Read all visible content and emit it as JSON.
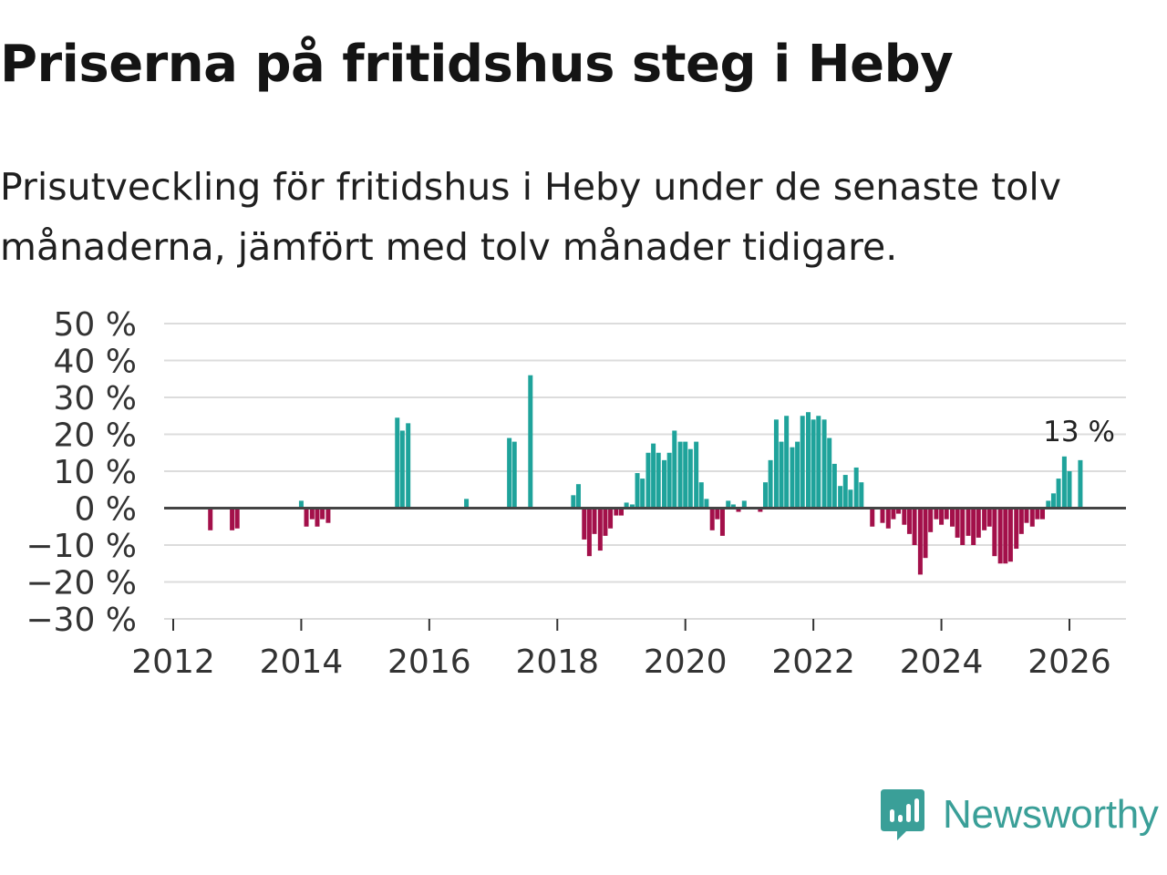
{
  "title": "Priserna på fritidshus steg i Heby",
  "subtitle": "Prisutveckling för fritidshus i Heby under de senaste tolv månaderna, jämfört med tolv månader tidigare.",
  "brand": {
    "name": "Newsworthy",
    "icon": "bar-chart-bubble-icon"
  },
  "colors": {
    "positive": "#1fa39b",
    "negative": "#a3104a",
    "grid": "#dcdcdc",
    "zero": "#444444",
    "brand": "#3a9f98"
  },
  "chart_data": {
    "type": "bar",
    "title": "Priserna på fritidshus steg i Heby",
    "xlabel": "",
    "ylabel": "",
    "ylim": [
      -30,
      50
    ],
    "yticks": [
      50,
      40,
      30,
      20,
      10,
      0,
      -10,
      -20,
      -30
    ],
    "ytick_labels": [
      "50 %",
      "40 %",
      "30 %",
      "20 %",
      "10 %",
      "0 %",
      "−10 %",
      "−20 %",
      "−30 %"
    ],
    "xlim": [
      2012,
      2026.85
    ],
    "xticks": [
      2012,
      2014,
      2016,
      2018,
      2020,
      2022,
      2024,
      2026
    ],
    "xtick_labels": [
      "2012",
      "2014",
      "2016",
      "2018",
      "2020",
      "2022",
      "2024",
      "2026"
    ],
    "grid": true,
    "annotation": {
      "text": "13 %",
      "x": 2026.17,
      "y": 13
    },
    "series": [
      {
        "name": "Prisutveckling",
        "points": [
          [
            2012.58,
            -6
          ],
          [
            2012.92,
            -6
          ],
          [
            2013.0,
            -5.5
          ],
          [
            2014.0,
            2
          ],
          [
            2014.08,
            -5
          ],
          [
            2014.17,
            -3
          ],
          [
            2014.25,
            -5
          ],
          [
            2014.33,
            -3
          ],
          [
            2014.42,
            -4
          ],
          [
            2015.5,
            24.5
          ],
          [
            2015.58,
            21
          ],
          [
            2015.67,
            23
          ],
          [
            2016.58,
            2.5
          ],
          [
            2017.25,
            19
          ],
          [
            2017.33,
            18
          ],
          [
            2017.58,
            36
          ],
          [
            2018.25,
            3.5
          ],
          [
            2018.33,
            6.5
          ],
          [
            2018.42,
            -8.5
          ],
          [
            2018.5,
            -13
          ],
          [
            2018.58,
            -7
          ],
          [
            2018.67,
            -11.5
          ],
          [
            2018.75,
            -7.5
          ],
          [
            2018.83,
            -5.5
          ],
          [
            2018.92,
            -2
          ],
          [
            2019.0,
            -2
          ],
          [
            2019.08,
            1.5
          ],
          [
            2019.17,
            1
          ],
          [
            2019.25,
            9.5
          ],
          [
            2019.33,
            8
          ],
          [
            2019.42,
            15
          ],
          [
            2019.5,
            17.5
          ],
          [
            2019.58,
            15
          ],
          [
            2019.67,
            13
          ],
          [
            2019.75,
            15
          ],
          [
            2019.83,
            21
          ],
          [
            2019.92,
            18
          ],
          [
            2020.0,
            18
          ],
          [
            2020.08,
            16
          ],
          [
            2020.17,
            18
          ],
          [
            2020.25,
            7
          ],
          [
            2020.33,
            2.5
          ],
          [
            2020.42,
            -6
          ],
          [
            2020.5,
            -3
          ],
          [
            2020.58,
            -7.5
          ],
          [
            2020.67,
            2
          ],
          [
            2020.75,
            1
          ],
          [
            2020.83,
            -1
          ],
          [
            2020.92,
            2
          ],
          [
            2021.17,
            -1
          ],
          [
            2021.25,
            7
          ],
          [
            2021.33,
            13
          ],
          [
            2021.42,
            24
          ],
          [
            2021.5,
            18
          ],
          [
            2021.58,
            25
          ],
          [
            2021.67,
            16.5
          ],
          [
            2021.75,
            18
          ],
          [
            2021.83,
            25
          ],
          [
            2021.92,
            26
          ],
          [
            2022.0,
            24
          ],
          [
            2022.08,
            25
          ],
          [
            2022.17,
            24
          ],
          [
            2022.25,
            19
          ],
          [
            2022.33,
            12
          ],
          [
            2022.42,
            6
          ],
          [
            2022.5,
            9
          ],
          [
            2022.58,
            5
          ],
          [
            2022.67,
            11
          ],
          [
            2022.75,
            7
          ],
          [
            2022.92,
            -5
          ],
          [
            2023.08,
            -4
          ],
          [
            2023.17,
            -5.5
          ],
          [
            2023.25,
            -3
          ],
          [
            2023.33,
            -1.5
          ],
          [
            2023.42,
            -4.5
          ],
          [
            2023.5,
            -7
          ],
          [
            2023.58,
            -10
          ],
          [
            2023.67,
            -18
          ],
          [
            2023.75,
            -13.5
          ],
          [
            2023.83,
            -6.5
          ],
          [
            2023.92,
            -3
          ],
          [
            2024.0,
            -4.5
          ],
          [
            2024.08,
            -3
          ],
          [
            2024.17,
            -5
          ],
          [
            2024.25,
            -8
          ],
          [
            2024.33,
            -10
          ],
          [
            2024.42,
            -7.5
          ],
          [
            2024.5,
            -10
          ],
          [
            2024.58,
            -8
          ],
          [
            2024.67,
            -6
          ],
          [
            2024.75,
            -5
          ],
          [
            2024.83,
            -13
          ],
          [
            2024.92,
            -15
          ],
          [
            2025.0,
            -15
          ],
          [
            2025.08,
            -14.5
          ],
          [
            2025.17,
            -11
          ],
          [
            2025.25,
            -7
          ],
          [
            2025.33,
            -4
          ],
          [
            2025.42,
            -5
          ],
          [
            2025.5,
            -3
          ],
          [
            2025.58,
            -3
          ],
          [
            2025.67,
            2
          ],
          [
            2025.75,
            4
          ],
          [
            2025.83,
            8
          ],
          [
            2025.92,
            14
          ],
          [
            2026.0,
            10
          ],
          [
            2026.17,
            13
          ]
        ]
      }
    ]
  }
}
